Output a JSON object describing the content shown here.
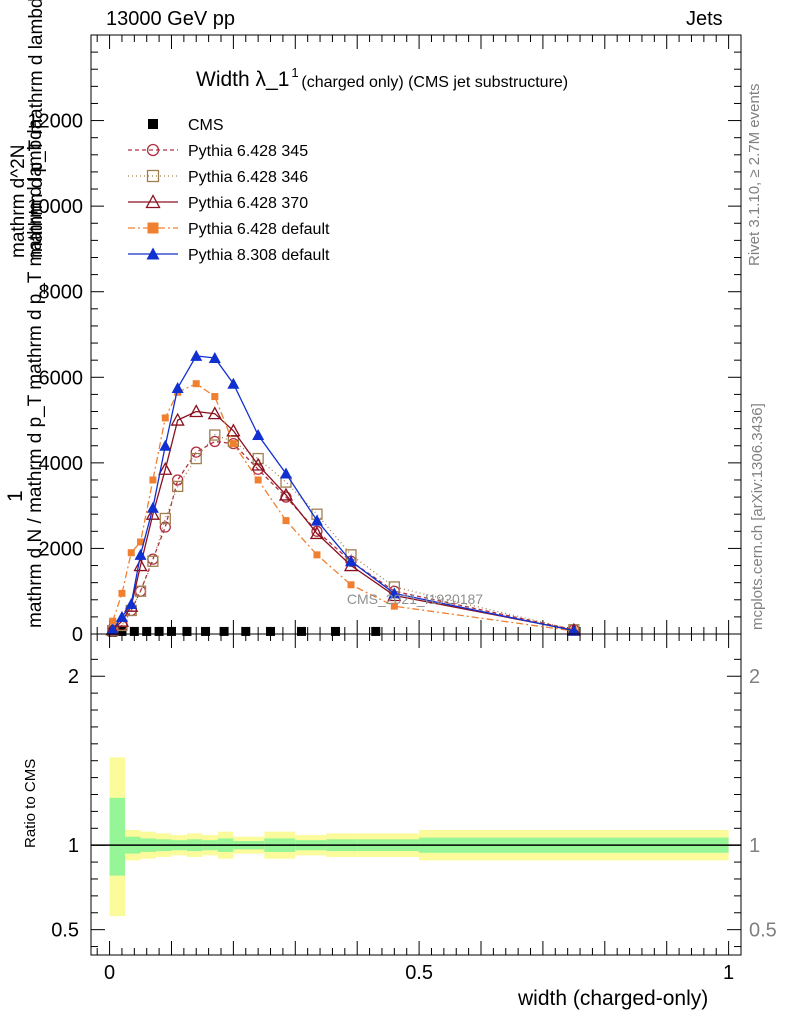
{
  "header": {
    "left": "13000 GeV pp",
    "right": "Jets"
  },
  "side_text": {
    "rivet": "Rivet 3.1.10, ≥ 2.7M events",
    "mcplots": "mcplots.cern.ch [arXiv:1306.3436]"
  },
  "watermark": "CMS_2021_I1920187",
  "chart_data": [
    {
      "type": "line",
      "title_main": "Width λ_1",
      "title_sup": "1",
      "title_sub": "(charged only) (CMS jet substructure)",
      "xlabel": "width (charged-only)",
      "ylabel_num": "1",
      "ylabel_den": "mathrm d N / mathrm d p_T mathrm d p_T mathrm d lambda",
      "ylabel_top": "mathrm d^2N",
      "ylabel_top2": "mathrm d p_T mathrm d lambda",
      "xlim": [
        -0.03,
        1.02
      ],
      "ylim": [
        0,
        14000
      ],
      "yticks": [
        0,
        2000,
        4000,
        6000,
        8000,
        10000,
        12000
      ],
      "ytick_labels": [
        "0",
        "2000",
        "4000",
        "6000",
        "8000",
        "10000",
        "12000"
      ],
      "legend_position": "top-left",
      "series": [
        {
          "name": "CMS",
          "color": "#000000",
          "marker": "square-filled",
          "x": [
            0.005,
            0.02,
            0.04,
            0.06,
            0.08,
            0.1,
            0.125,
            0.155,
            0.185,
            0.22,
            0.26,
            0.31,
            0.365,
            0.43
          ],
          "y": [
            40,
            60,
            60,
            60,
            60,
            60,
            60,
            60,
            60,
            60,
            60,
            60,
            60,
            60
          ]
        },
        {
          "name": "Pythia 6.428 345",
          "color": "#b03040",
          "marker": "circle-open",
          "dash": "4,3",
          "x": [
            0.005,
            0.02,
            0.035,
            0.05,
            0.07,
            0.09,
            0.11,
            0.14,
            0.17,
            0.2,
            0.24,
            0.285,
            0.335,
            0.39,
            0.46,
            0.75
          ],
          "y": [
            80,
            200,
            550,
            1000,
            1750,
            2500,
            3600,
            4250,
            4500,
            4450,
            3850,
            3200,
            2400,
            1700,
            1000,
            100
          ]
        },
        {
          "name": "Pythia 6.428 346",
          "color": "#a08050",
          "marker": "square-open",
          "dash": "1,3",
          "x": [
            0.005,
            0.02,
            0.035,
            0.05,
            0.07,
            0.09,
            0.11,
            0.14,
            0.17,
            0.2,
            0.24,
            0.285,
            0.335,
            0.39,
            0.46,
            0.75
          ],
          "y": [
            80,
            200,
            550,
            1000,
            1700,
            2700,
            3450,
            4100,
            4650,
            4500,
            4100,
            3550,
            2800,
            1850,
            1100,
            100
          ]
        },
        {
          "name": "Pythia 6.428 370",
          "color": "#8b1020",
          "marker": "triangle-open",
          "dash": "",
          "x": [
            0.005,
            0.02,
            0.035,
            0.05,
            0.07,
            0.09,
            0.11,
            0.14,
            0.17,
            0.2,
            0.24,
            0.285,
            0.335,
            0.39,
            0.46,
            0.75
          ],
          "y": [
            100,
            300,
            650,
            1600,
            2800,
            3850,
            5000,
            5200,
            5150,
            4750,
            3950,
            3250,
            2350,
            1600,
            900,
            90
          ]
        },
        {
          "name": "Pythia 6.428 default",
          "color": "#f08030",
          "marker": "square-filled",
          "dash": "7,3,2,3",
          "x": [
            0.005,
            0.02,
            0.035,
            0.05,
            0.07,
            0.09,
            0.11,
            0.14,
            0.17,
            0.2,
            0.24,
            0.285,
            0.335,
            0.39,
            0.46,
            0.75
          ],
          "y": [
            300,
            950,
            1900,
            2150,
            3600,
            5050,
            5650,
            5850,
            5550,
            4450,
            3600,
            2650,
            1850,
            1150,
            650,
            70
          ]
        },
        {
          "name": "Pythia 8.308 default",
          "color": "#1030d0",
          "marker": "triangle-filled",
          "dash": "",
          "x": [
            0.005,
            0.02,
            0.035,
            0.05,
            0.07,
            0.09,
            0.11,
            0.14,
            0.17,
            0.2,
            0.24,
            0.285,
            0.335,
            0.39,
            0.46,
            0.75
          ],
          "y": [
            100,
            400,
            700,
            1850,
            2950,
            4400,
            5750,
            6500,
            6450,
            5850,
            4650,
            3750,
            2650,
            1700,
            950,
            80
          ]
        }
      ]
    },
    {
      "type": "area",
      "ylabel": "Ratio to CMS",
      "xlabel": "width (charged-only)",
      "xlim": [
        -0.03,
        1.02
      ],
      "ylim": [
        0.35,
        2.25
      ],
      "yticks": [
        0.5,
        1,
        2
      ],
      "ytick_labels": [
        "0.5",
        "1",
        "2"
      ],
      "xticks": [
        0,
        0.5,
        1
      ],
      "xtick_labels": [
        "0",
        "0.5",
        "1"
      ],
      "bins": [
        0,
        0.025,
        0.05,
        0.075,
        0.1,
        0.125,
        0.15,
        0.175,
        0.2,
        0.25,
        0.3,
        0.35,
        0.4,
        0.5,
        1.0
      ],
      "band_yellow": [
        [
          0.58,
          1.52
        ],
        [
          0.91,
          1.09
        ],
        [
          0.92,
          1.08
        ],
        [
          0.93,
          1.07
        ],
        [
          0.94,
          1.06
        ],
        [
          0.93,
          1.07
        ],
        [
          0.94,
          1.06
        ],
        [
          0.92,
          1.08
        ],
        [
          0.95,
          1.05
        ],
        [
          0.92,
          1.08
        ],
        [
          0.94,
          1.06
        ],
        [
          0.93,
          1.07
        ],
        [
          0.93,
          1.07
        ],
        [
          0.91,
          1.09
        ]
      ],
      "band_green": [
        [
          0.82,
          1.28
        ],
        [
          0.95,
          1.05
        ],
        [
          0.96,
          1.04
        ],
        [
          0.965,
          1.035
        ],
        [
          0.97,
          1.03
        ],
        [
          0.965,
          1.035
        ],
        [
          0.97,
          1.03
        ],
        [
          0.96,
          1.04
        ],
        [
          0.975,
          1.025
        ],
        [
          0.96,
          1.04
        ],
        [
          0.97,
          1.03
        ],
        [
          0.965,
          1.035
        ],
        [
          0.965,
          1.035
        ],
        [
          0.955,
          1.045
        ]
      ],
      "colors": {
        "yellow": "#fbfb9b",
        "green": "#96f596",
        "reference": "#000000"
      }
    }
  ]
}
